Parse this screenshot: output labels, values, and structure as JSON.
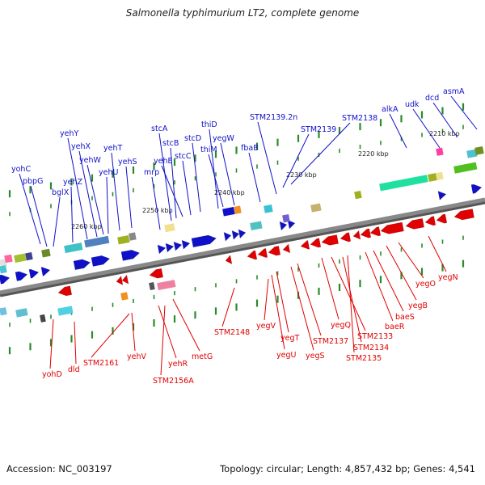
{
  "title": "Salmonella typhimurium LT2, complete genome",
  "footer": {
    "accession": "Accession: NC_003197",
    "stats": "Topology: circular; Length: 4,857,432 bp; Genes: 4,541"
  },
  "colors": {
    "forward": "#1010c8",
    "reverse": "#e00000",
    "axis": "#888888",
    "tick": "#2a8a2a"
  },
  "scale_labels": [
    "2210 kbp",
    "2220 kbp",
    "2230 kbp",
    "2240 kbp",
    "2250 kbp",
    "2260 kbp"
  ],
  "forward_genes": [
    "yohC",
    "pbpG",
    "bglX",
    "yehZ",
    "yehY",
    "yehX",
    "yehW",
    "yehU",
    "yehT",
    "yehS",
    "mrp",
    "stcA",
    "stcB",
    "yehE",
    "stcC",
    "stcD",
    "thiD",
    "thiM",
    "yegW",
    "fbaB",
    "STM2139.2n",
    "STM2139",
    "STM2138",
    "alkA",
    "udk",
    "dcd",
    "asmA"
  ],
  "reverse_genes": [
    "yohD",
    "dld",
    "STM2161",
    "yehV",
    "yehR",
    "STM2156A",
    "metG",
    "STM2148",
    "yegV",
    "yegU",
    "yegT",
    "yegS",
    "STM2137",
    "yegQ",
    "STM2133",
    "STM2134",
    "STM2135",
    "baeR",
    "baeS",
    "yegB",
    "yegO",
    "yegN"
  ]
}
